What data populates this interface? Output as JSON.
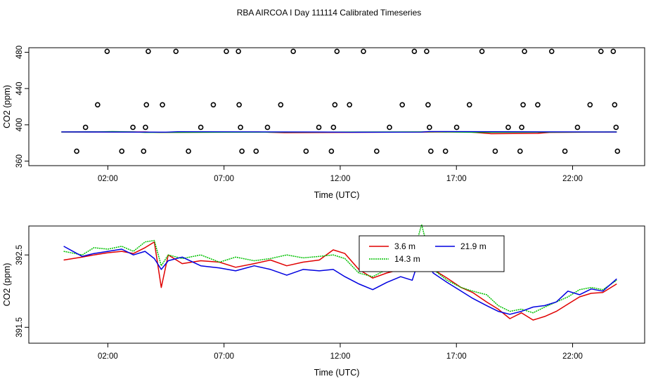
{
  "chart_data": [
    {
      "type": "scatter",
      "title": "RBA AIRCOA I  Day 111114  Calibrated Timeseries",
      "xlabel": "Time (UTC)",
      "ylabel": "CO2 (ppm)",
      "xlim": [
        -1.4,
        25.1
      ],
      "ylim": [
        355,
        485
      ],
      "xticks": [
        2,
        7,
        12,
        17,
        22
      ],
      "xtick_labels": [
        "02:00",
        "07:00",
        "12:00",
        "17:00",
        "22:00"
      ],
      "yticks": [
        360,
        400,
        440,
        480
      ],
      "ytick_labels": [
        "360",
        "400",
        "440",
        "480"
      ],
      "flag_points": [
        {
          "x": 0.66,
          "y": 370.9
        },
        {
          "x": 1.04,
          "y": 397.2
        },
        {
          "x": 1.56,
          "y": 422.1
        },
        {
          "x": 1.97,
          "y": 481.0
        },
        {
          "x": 2.6,
          "y": 370.9
        },
        {
          "x": 3.08,
          "y": 397.2
        },
        {
          "x": 3.54,
          "y": 370.9
        },
        {
          "x": 3.62,
          "y": 397.2
        },
        {
          "x": 3.66,
          "y": 422.1
        },
        {
          "x": 3.74,
          "y": 481.0
        },
        {
          "x": 4.35,
          "y": 422.1
        },
        {
          "x": 4.93,
          "y": 481.0
        },
        {
          "x": 5.47,
          "y": 370.9
        },
        {
          "x": 6.0,
          "y": 397.2
        },
        {
          "x": 6.54,
          "y": 422.1
        },
        {
          "x": 7.1,
          "y": 481.0
        },
        {
          "x": 7.62,
          "y": 481.0
        },
        {
          "x": 7.65,
          "y": 422.1
        },
        {
          "x": 7.71,
          "y": 397.2
        },
        {
          "x": 7.77,
          "y": 370.9
        },
        {
          "x": 8.38,
          "y": 370.9
        },
        {
          "x": 8.87,
          "y": 397.2
        },
        {
          "x": 9.44,
          "y": 422.1
        },
        {
          "x": 9.98,
          "y": 481.0
        },
        {
          "x": 10.53,
          "y": 370.9
        },
        {
          "x": 11.08,
          "y": 397.2
        },
        {
          "x": 11.62,
          "y": 370.9
        },
        {
          "x": 11.71,
          "y": 397.2
        },
        {
          "x": 11.77,
          "y": 422.1
        },
        {
          "x": 11.86,
          "y": 481.0
        },
        {
          "x": 12.4,
          "y": 422.1
        },
        {
          "x": 13.0,
          "y": 481.0
        },
        {
          "x": 13.57,
          "y": 370.9
        },
        {
          "x": 14.12,
          "y": 397.2
        },
        {
          "x": 14.67,
          "y": 422.1
        },
        {
          "x": 15.19,
          "y": 481.0
        },
        {
          "x": 15.72,
          "y": 481.0
        },
        {
          "x": 15.78,
          "y": 422.1
        },
        {
          "x": 15.84,
          "y": 397.2
        },
        {
          "x": 15.9,
          "y": 370.9
        },
        {
          "x": 16.53,
          "y": 370.9
        },
        {
          "x": 17.01,
          "y": 397.2
        },
        {
          "x": 17.56,
          "y": 422.1
        },
        {
          "x": 18.1,
          "y": 481.0
        },
        {
          "x": 18.67,
          "y": 370.9
        },
        {
          "x": 19.23,
          "y": 397.2
        },
        {
          "x": 19.74,
          "y": 370.9
        },
        {
          "x": 19.81,
          "y": 397.2
        },
        {
          "x": 19.87,
          "y": 422.1
        },
        {
          "x": 19.93,
          "y": 481.0
        },
        {
          "x": 20.5,
          "y": 422.1
        },
        {
          "x": 21.1,
          "y": 481.0
        },
        {
          "x": 21.67,
          "y": 370.9
        },
        {
          "x": 22.21,
          "y": 397.2
        },
        {
          "x": 22.75,
          "y": 422.1
        },
        {
          "x": 23.22,
          "y": 481.0
        },
        {
          "x": 23.75,
          "y": 481.0
        },
        {
          "x": 23.81,
          "y": 422.1
        },
        {
          "x": 23.87,
          "y": 397.2
        },
        {
          "x": 23.93,
          "y": 370.9
        }
      ],
      "series": [
        {
          "name": "3.6 m",
          "color": "#e00000",
          "x": [
            0,
            3.6,
            4.2,
            8.5,
            9.6,
            17.5,
            18.5,
            20.5,
            21,
            23.9
          ],
          "y": [
            392.1,
            392.2,
            391.6,
            392.1,
            391.4,
            392.2,
            390.2,
            390.6,
            391.6,
            392.1
          ]
        },
        {
          "name": "14.3 m",
          "color": "#00c000",
          "x": [
            0,
            1.6,
            2.2,
            3.1,
            3.6,
            16.2,
            17.9,
            23.9
          ],
          "y": [
            392.1,
            392.3,
            392.6,
            392.2,
            391.6,
            392.3,
            391.7,
            392.2
          ]
        },
        {
          "name": "21.9 m",
          "color": "#0000e0",
          "x": [
            0,
            4.5,
            5.0,
            11.0,
            12.5,
            15.5,
            15.8,
            23.9
          ],
          "y": [
            392.2,
            391.9,
            392.4,
            392.1,
            391.8,
            392.0,
            392.6,
            392.1
          ]
        }
      ]
    },
    {
      "type": "line",
      "title": "",
      "xlabel": "Time (UTC)",
      "ylabel": "CO2 (ppm)",
      "xlim": [
        -1.4,
        25.1
      ],
      "ylim": [
        391.28,
        392.9
      ],
      "xticks": [
        2,
        7,
        12,
        17,
        22
      ],
      "xtick_labels": [
        "02:00",
        "07:00",
        "12:00",
        "17:00",
        "22:00"
      ],
      "yticks": [
        391.5,
        392.5
      ],
      "ytick_labels": [
        "391.5",
        "392.5"
      ],
      "legend_position": "top-center",
      "series": [
        {
          "name": "3.6 m",
          "color": "#e00000",
          "x": [
            0.1,
            0.9,
            1.4,
            2.0,
            2.6,
            3.1,
            3.6,
            4.0,
            4.3,
            4.6,
            5.2,
            6.0,
            6.8,
            7.5,
            8.3,
            9.0,
            9.7,
            10.4,
            11.1,
            11.7,
            12.2,
            12.8,
            13.4,
            14.0,
            14.6,
            15.1,
            15.5,
            16.0,
            16.6,
            17.2,
            17.7,
            18.3,
            18.8,
            19.3,
            19.8,
            20.3,
            20.8,
            21.3,
            21.8,
            22.3,
            22.8,
            23.3,
            23.9
          ],
          "y": [
            392.43,
            392.47,
            392.5,
            392.53,
            392.55,
            392.52,
            392.6,
            392.68,
            392.05,
            392.5,
            392.38,
            392.42,
            392.4,
            392.33,
            392.38,
            392.43,
            392.35,
            392.4,
            392.43,
            392.57,
            392.52,
            392.3,
            392.18,
            392.25,
            392.3,
            392.38,
            392.47,
            392.3,
            392.18,
            392.05,
            391.98,
            391.85,
            391.75,
            391.62,
            391.7,
            391.6,
            391.65,
            391.72,
            391.82,
            391.92,
            391.97,
            391.98,
            392.1
          ]
        },
        {
          "name": "14.3 m",
          "color": "#00c000",
          "x": [
            0.1,
            0.9,
            1.4,
            2.0,
            2.6,
            3.1,
            3.6,
            4.0,
            4.3,
            4.6,
            5.2,
            6.0,
            6.8,
            7.5,
            8.3,
            9.0,
            9.7,
            10.4,
            11.1,
            11.7,
            12.2,
            12.8,
            13.4,
            14.0,
            14.6,
            15.1,
            15.5,
            16.0,
            16.6,
            17.2,
            17.7,
            18.3,
            18.8,
            19.3,
            19.8,
            20.3,
            20.8,
            21.3,
            21.8,
            22.3,
            22.8,
            23.3,
            23.9
          ],
          "y": [
            392.55,
            392.5,
            392.6,
            392.58,
            392.62,
            392.55,
            392.68,
            392.7,
            392.35,
            392.5,
            392.45,
            392.5,
            392.4,
            392.47,
            392.42,
            392.45,
            392.5,
            392.46,
            392.48,
            392.5,
            392.45,
            392.25,
            392.2,
            392.3,
            392.35,
            392.45,
            392.92,
            392.3,
            392.15,
            392.05,
            392.0,
            391.95,
            391.8,
            391.72,
            391.75,
            391.7,
            391.78,
            391.85,
            391.92,
            392.02,
            392.05,
            392.02,
            392.15
          ]
        },
        {
          "name": "21.9 m",
          "color": "#0000e0",
          "x": [
            0.1,
            0.9,
            1.4,
            2.0,
            2.6,
            3.1,
            3.6,
            4.0,
            4.3,
            4.6,
            5.2,
            6.0,
            6.8,
            7.5,
            8.3,
            9.0,
            9.7,
            10.4,
            11.1,
            11.7,
            12.2,
            12.8,
            13.4,
            14.0,
            14.6,
            15.1,
            15.5,
            16.0,
            16.6,
            17.2,
            17.7,
            18.3,
            18.8,
            19.3,
            19.8,
            20.3,
            20.8,
            21.3,
            21.8,
            22.3,
            22.8,
            23.3,
            23.9
          ],
          "y": [
            392.62,
            392.48,
            392.52,
            392.55,
            392.58,
            392.5,
            392.55,
            392.45,
            392.3,
            392.42,
            392.47,
            392.35,
            392.32,
            392.28,
            392.35,
            392.3,
            392.22,
            392.3,
            392.28,
            392.3,
            392.2,
            392.1,
            392.02,
            392.12,
            392.2,
            392.15,
            392.55,
            392.25,
            392.12,
            392.0,
            391.9,
            391.8,
            391.72,
            391.68,
            391.72,
            391.78,
            391.8,
            391.85,
            392.0,
            391.95,
            392.03,
            392.0,
            392.17
          ]
        }
      ]
    }
  ]
}
